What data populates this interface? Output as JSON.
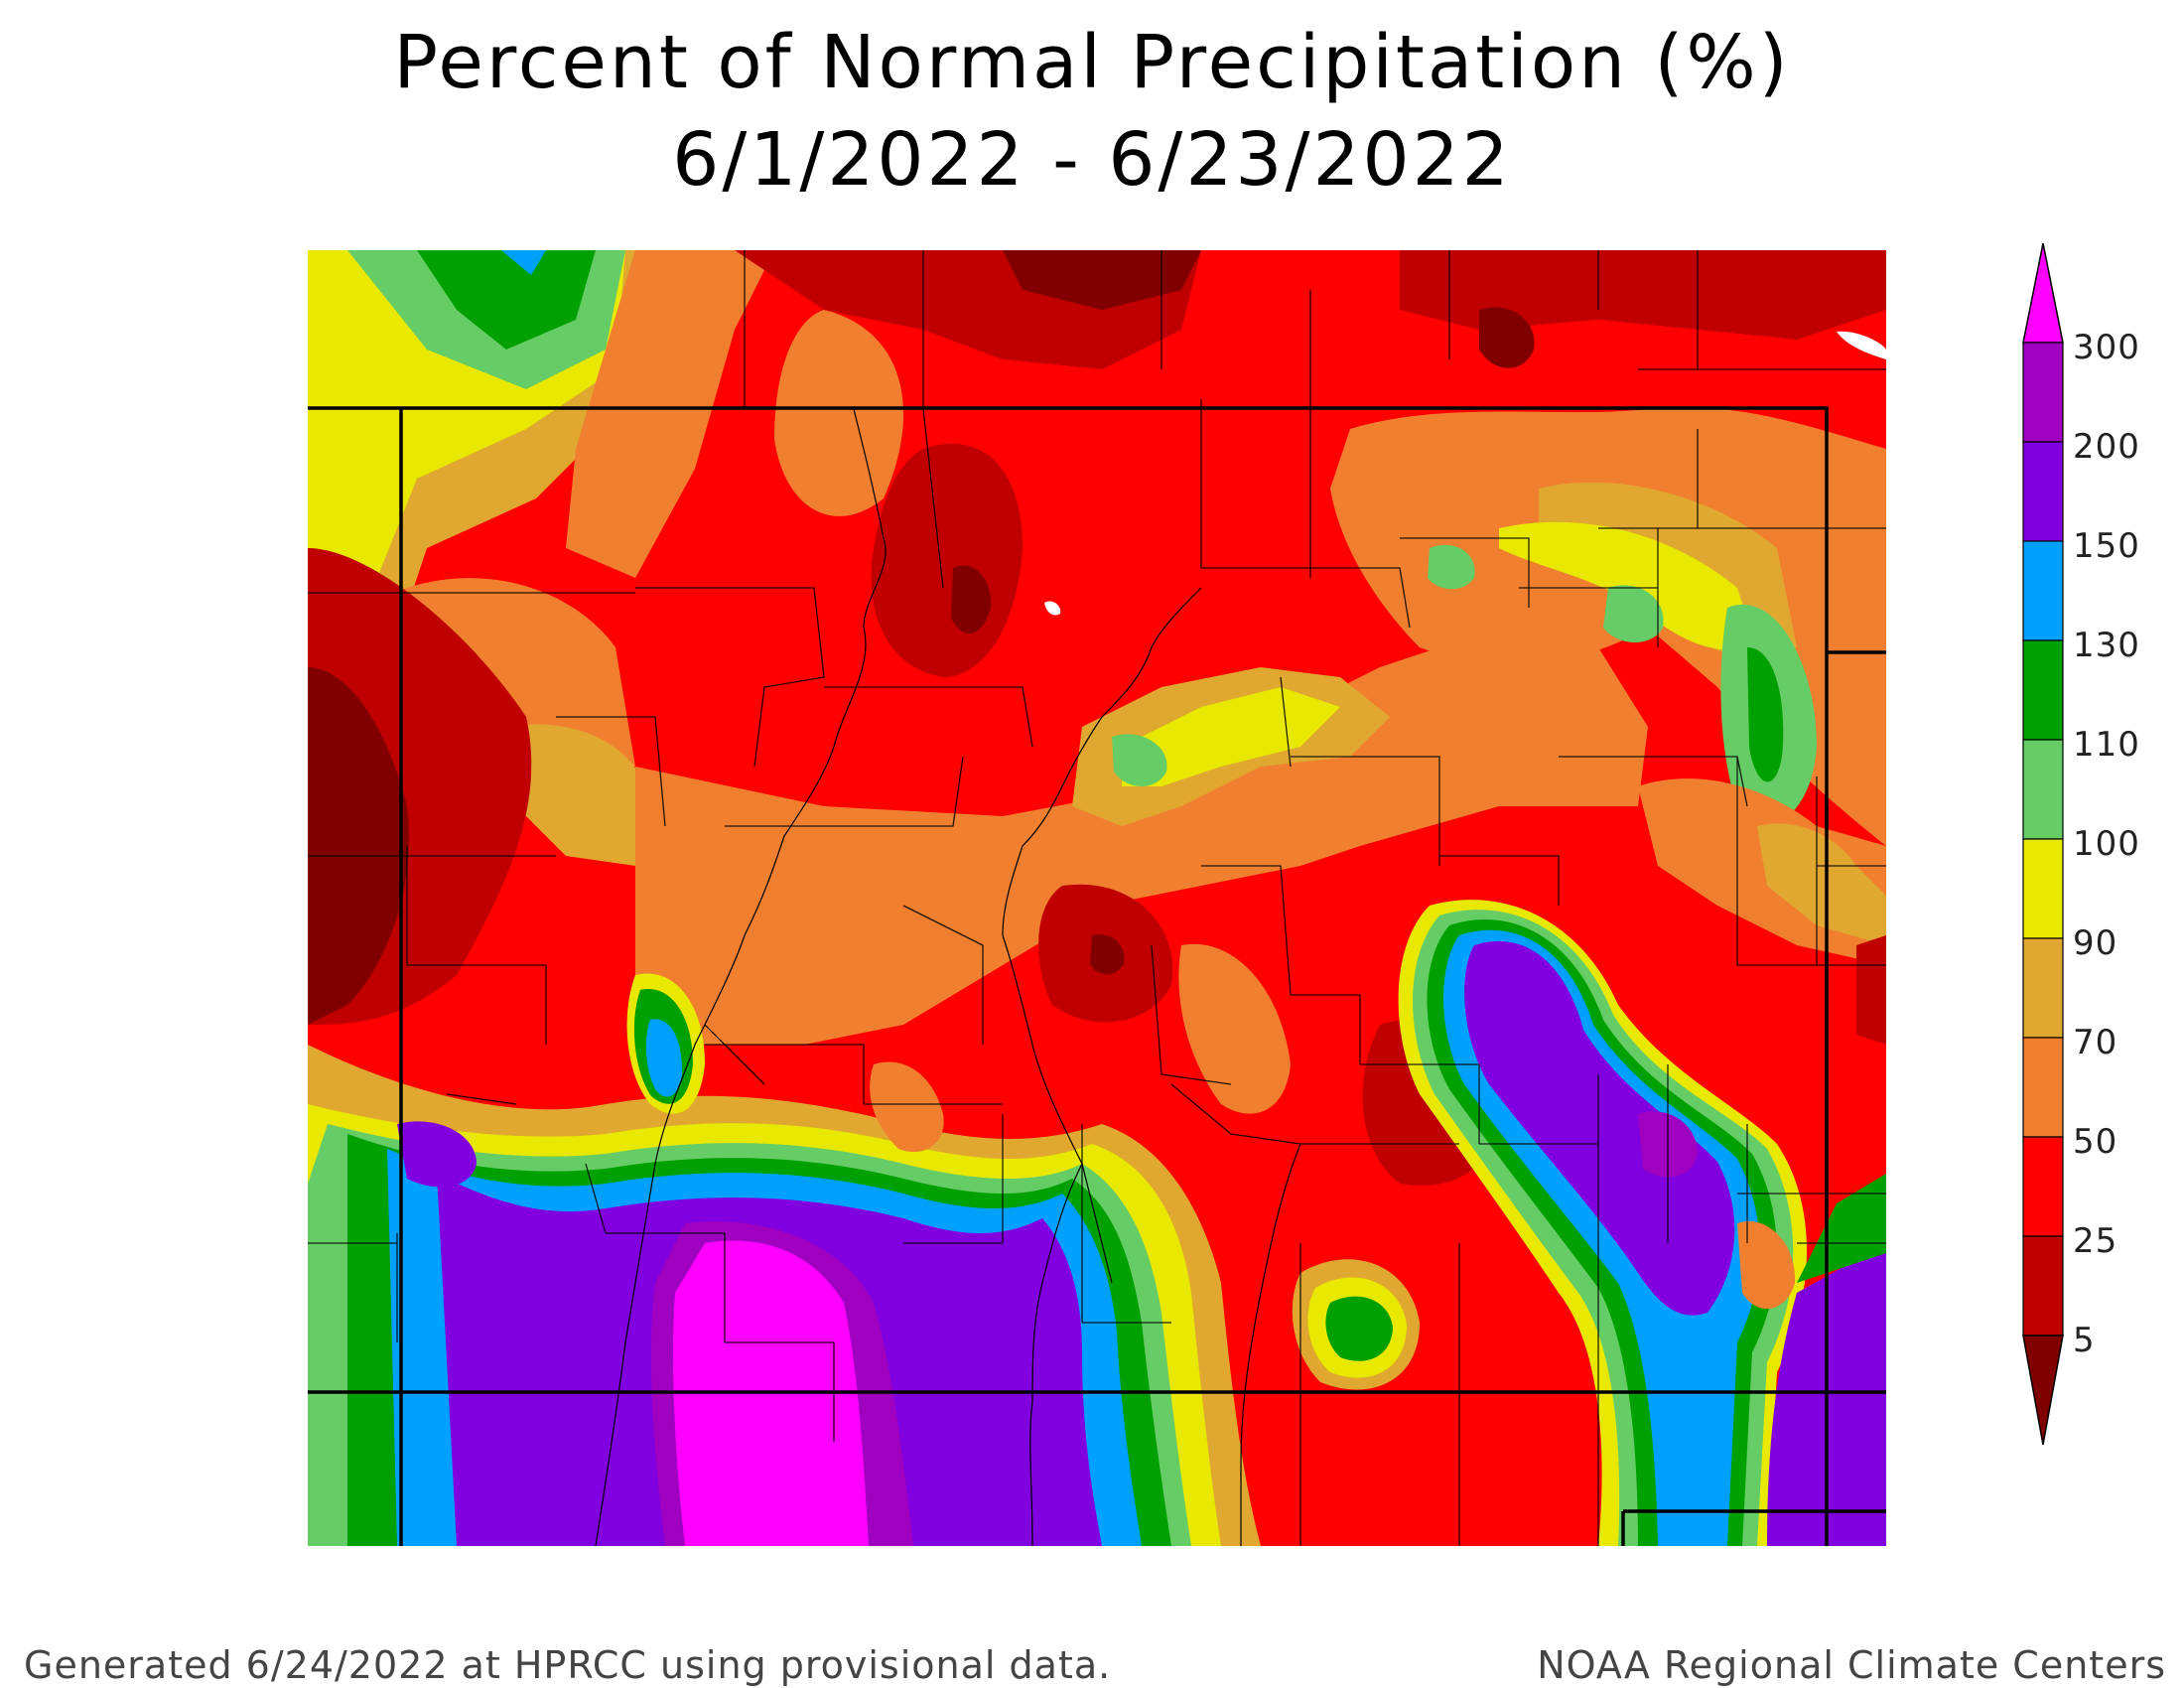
{
  "title": {
    "line1": "Percent of Normal Precipitation (%)",
    "line2": "6/1/2022 - 6/23/2022"
  },
  "footer": {
    "left": "Generated 6/24/2022 at HPRCC using provisional data.",
    "right": "NOAA Regional Climate Centers"
  },
  "legend": {
    "labels": [
      "300",
      "200",
      "150",
      "130",
      "110",
      "100",
      "90",
      "70",
      "50",
      "25",
      "5"
    ],
    "colors": {
      "lt5": "#800000",
      "5_25": "#c00000",
      "25_50": "#ff0000",
      "50_70": "#f08030",
      "70_90": "#e0a830",
      "90_100": "#e8e800",
      "100_110": "#66cc66",
      "110_130": "#00a000",
      "130_150": "#00a0ff",
      "150_200": "#8000e0",
      "200_300": "#a000c0",
      "gt300": "#ff00ff"
    }
  }
}
